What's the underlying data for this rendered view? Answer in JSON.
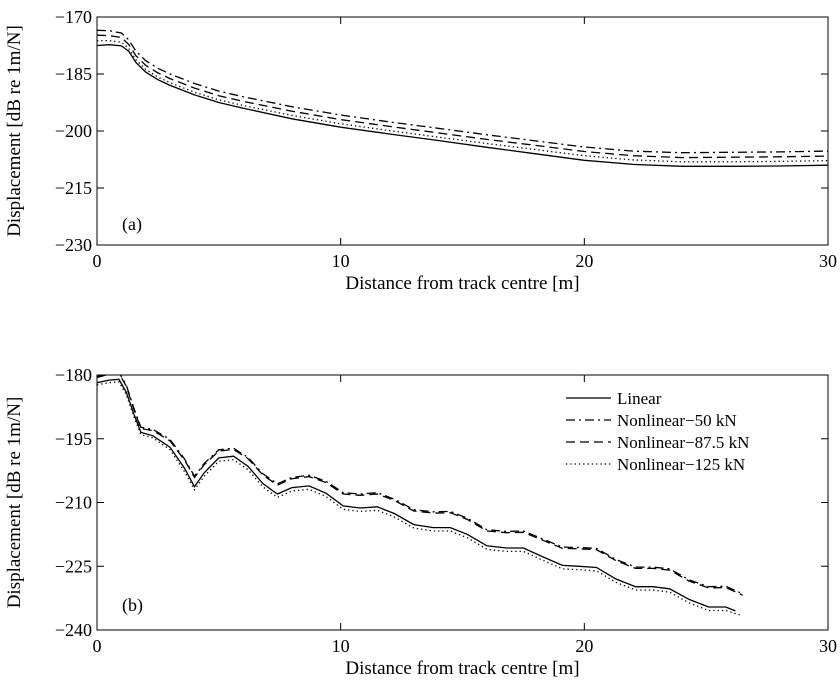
{
  "chart_data": [
    {
      "type": "line",
      "panel_label": "(a)",
      "xlabel": "Distance from track centre [m]",
      "ylabel": "Displacement [dB re 1m/N]",
      "xlim": [
        0,
        30
      ],
      "ylim": [
        -230,
        -170
      ],
      "xticks": [
        0,
        10,
        20,
        30
      ],
      "yticks": [
        -170,
        -185,
        -200,
        -215,
        -230
      ],
      "xtick_labels": [
        "0",
        "10",
        "20",
        "30"
      ],
      "ytick_labels": [
        "−170",
        "−185",
        "−200",
        "−215",
        "−230"
      ],
      "grid": false,
      "series": [
        {
          "style": "solid",
          "color": "#000000",
          "x": [
            0,
            0.5,
            1,
            1.3,
            1.6,
            2,
            2.5,
            3,
            4,
            5,
            6,
            8,
            10,
            12,
            14,
            16,
            18,
            20,
            22,
            24,
            26,
            28,
            30
          ],
          "y": [
            -177.5,
            -177.3,
            -177.6,
            -179,
            -182,
            -184.5,
            -186.5,
            -188,
            -190.5,
            -192.5,
            -194,
            -196.8,
            -199,
            -200.8,
            -202.5,
            -204.3,
            -206,
            -207.7,
            -208.8,
            -209.3,
            -209.3,
            -209.2,
            -209.0
          ]
        },
        {
          "style": "dashdot",
          "color": "#000000",
          "x": [
            0,
            0.5,
            1,
            1.3,
            1.6,
            2,
            2.5,
            3,
            4,
            5,
            6,
            8,
            10,
            12,
            14,
            16,
            18,
            20,
            22,
            24,
            26,
            28,
            30
          ],
          "y": [
            -173.5,
            -173.6,
            -174.2,
            -176,
            -179,
            -181.5,
            -183.5,
            -185,
            -187.5,
            -189.5,
            -191,
            -193.6,
            -195.8,
            -197.6,
            -199.3,
            -201,
            -202.6,
            -204.2,
            -205.3,
            -205.7,
            -205.6,
            -205.5,
            -205.3
          ]
        },
        {
          "style": "dashed",
          "color": "#000000",
          "x": [
            0,
            0.5,
            1,
            1.3,
            1.6,
            2,
            2.5,
            3,
            4,
            5,
            6,
            8,
            10,
            12,
            14,
            16,
            18,
            20,
            22,
            24,
            26,
            28,
            30
          ],
          "y": [
            -174.8,
            -174.9,
            -175.4,
            -177.2,
            -180.2,
            -182.7,
            -184.7,
            -186.2,
            -188.7,
            -190.7,
            -192.2,
            -194.8,
            -197,
            -198.8,
            -200.5,
            -202.2,
            -203.8,
            -205.4,
            -206.5,
            -207,
            -206.9,
            -206.8,
            -206.6
          ]
        },
        {
          "style": "dotted",
          "color": "#000000",
          "x": [
            0,
            0.5,
            1,
            1.3,
            1.6,
            2,
            2.5,
            3,
            4,
            5,
            6,
            8,
            10,
            12,
            14,
            16,
            18,
            20,
            22,
            24,
            26,
            28,
            30
          ],
          "y": [
            -176.2,
            -176.2,
            -176.6,
            -178.3,
            -181.3,
            -183.8,
            -185.8,
            -187.3,
            -189.8,
            -191.8,
            -193.3,
            -195.9,
            -198.1,
            -199.9,
            -201.6,
            -203.3,
            -204.9,
            -206.5,
            -207.6,
            -208.1,
            -208.1,
            -208.0,
            -207.8
          ]
        }
      ]
    },
    {
      "type": "line",
      "panel_label": "(b)",
      "xlabel": "Distance from track centre [m]",
      "ylabel": "Displacement [dB re 1m/N]",
      "xlim": [
        0,
        30
      ],
      "ylim": [
        -240,
        -180
      ],
      "xticks": [
        0,
        10,
        20,
        30
      ],
      "yticks": [
        -180,
        -195,
        -210,
        -225,
        -240
      ],
      "xtick_labels": [
        "0",
        "10",
        "20",
        "30"
      ],
      "ytick_labels": [
        "−180",
        "−195",
        "−210",
        "−225",
        "−240"
      ],
      "grid": false,
      "legend": {
        "position": "top-right",
        "entries": [
          {
            "label": "Linear",
            "style": "solid"
          },
          {
            "label": "Nonlinear−50 kN",
            "style": "dashdot"
          },
          {
            "label": "Nonlinear−87.5 kN",
            "style": "dashed"
          },
          {
            "label": "Nonlinear−125 kN",
            "style": "dotted"
          }
        ]
      },
      "series": [
        {
          "name": "Linear",
          "style": "solid",
          "color": "#000000",
          "x": [
            0,
            0.5,
            0.9,
            1.2,
            1.5,
            1.8,
            2.3,
            3.0,
            3.6,
            4.0,
            4.4,
            5.0,
            5.6,
            6.2,
            6.8,
            7.4,
            8.0,
            8.7,
            9.4,
            10.1,
            10.8,
            11.5,
            12.2,
            13.0,
            13.8,
            14.5,
            15.2,
            16.0,
            16.8,
            17.5,
            18.3,
            19.1,
            19.8,
            20.5,
            21.3,
            22.1,
            22.8,
            23.5,
            24.3,
            25.1,
            25.8,
            26.2
          ],
          "y": [
            -181.8,
            -181.2,
            -181.0,
            -184,
            -189,
            -193.5,
            -194.3,
            -197,
            -202,
            -206.3,
            -203,
            -199.5,
            -199.1,
            -201.5,
            -205.5,
            -208.0,
            -206.5,
            -206.1,
            -207.8,
            -210.8,
            -211.3,
            -211.0,
            -212.6,
            -215.2,
            -215.9,
            -215.9,
            -217.5,
            -220.2,
            -220.7,
            -220.7,
            -222.8,
            -224.8,
            -225.0,
            -225.3,
            -228.0,
            -229.8,
            -229.8,
            -230.3,
            -232.8,
            -234.6,
            -234.6,
            -235.5
          ]
        },
        {
          "name": "Nonlinear−50 kN",
          "style": "dashdot",
          "color": "#000000",
          "x": [
            0,
            0.5,
            0.9,
            1.2,
            1.5,
            1.8,
            2.3,
            3.0,
            3.6,
            4.0,
            4.4,
            5.0,
            5.6,
            6.2,
            6.8,
            7.4,
            8.0,
            8.7,
            9.4,
            10.1,
            10.8,
            11.5,
            12.2,
            13.0,
            13.8,
            14.5,
            15.2,
            16.0,
            16.8,
            17.5,
            18.3,
            19.1,
            19.8,
            20.5,
            21.3,
            22.1,
            22.8,
            23.5,
            24.3,
            25.1,
            25.8,
            26.5
          ],
          "y": [
            -180.4,
            -179.6,
            -179.4,
            -182.3,
            -187.6,
            -192.3,
            -192.8,
            -195.2,
            -199.8,
            -203.8,
            -200.8,
            -197.6,
            -197.2,
            -199.4,
            -203.2,
            -205.6,
            -204.1,
            -203.6,
            -205.0,
            -207.7,
            -208.0,
            -207.7,
            -209.2,
            -211.7,
            -212.2,
            -212.1,
            -213.7,
            -216.4,
            -216.8,
            -216.7,
            -218.6,
            -220.5,
            -220.6,
            -220.8,
            -223.4,
            -225.2,
            -225.2,
            -225.6,
            -228.2,
            -229.8,
            -229.7,
            -231.5
          ]
        },
        {
          "name": "Nonlinear−87.5 kN",
          "style": "dashed",
          "color": "#000000",
          "x": [
            0,
            0.5,
            0.9,
            1.2,
            1.5,
            1.8,
            2.3,
            3.0,
            3.6,
            4.0,
            4.4,
            5.0,
            5.6,
            6.2,
            6.8,
            7.4,
            8.0,
            8.7,
            9.4,
            10.1,
            10.8,
            11.5,
            12.2,
            13.0,
            13.8,
            14.5,
            15.2,
            16.0,
            16.8,
            17.5,
            18.3,
            19.1,
            19.8,
            20.5,
            21.3,
            22.1,
            22.8,
            23.5,
            24.3,
            25.1,
            25.8,
            26.5
          ],
          "y": [
            -180.6,
            -179.8,
            -179.6,
            -182.6,
            -187.9,
            -192.6,
            -193.1,
            -195.5,
            -200.1,
            -204.1,
            -201.1,
            -197.9,
            -197.5,
            -199.7,
            -203.5,
            -205.9,
            -204.4,
            -203.9,
            -205.3,
            -208.0,
            -208.3,
            -208.0,
            -209.5,
            -212.0,
            -212.5,
            -212.4,
            -214.0,
            -216.7,
            -217.1,
            -217.0,
            -218.9,
            -220.8,
            -220.9,
            -221.1,
            -223.7,
            -225.5,
            -225.5,
            -225.9,
            -228.5,
            -230.1,
            -230.0,
            -231.8
          ]
        },
        {
          "name": "Nonlinear−125 kN",
          "style": "dotted",
          "color": "#000000",
          "x": [
            0,
            0.5,
            0.9,
            1.2,
            1.5,
            1.8,
            2.3,
            3.0,
            3.6,
            4.0,
            4.4,
            5.0,
            5.6,
            6.2,
            6.8,
            7.4,
            8.0,
            8.7,
            9.4,
            10.1,
            10.8,
            11.5,
            12.2,
            13.0,
            13.8,
            14.5,
            15.2,
            16.0,
            16.8,
            17.5,
            18.3,
            19.1,
            19.8,
            20.5,
            21.3,
            22.1,
            22.8,
            23.5,
            24.3,
            25.1,
            25.8,
            26.4
          ],
          "y": [
            -182.3,
            -181.8,
            -181.6,
            -184.6,
            -189.6,
            -194.0,
            -194.8,
            -197.6,
            -202.8,
            -207.0,
            -203.8,
            -200.3,
            -199.9,
            -202.3,
            -206.3,
            -208.8,
            -207.3,
            -206.9,
            -208.6,
            -211.6,
            -212.1,
            -211.8,
            -213.4,
            -216.0,
            -216.7,
            -216.7,
            -218.3,
            -221.0,
            -221.5,
            -221.5,
            -223.6,
            -225.6,
            -225.8,
            -226.1,
            -228.8,
            -230.6,
            -230.6,
            -231.1,
            -233.6,
            -235.4,
            -235.4,
            -236.5
          ]
        }
      ]
    }
  ]
}
